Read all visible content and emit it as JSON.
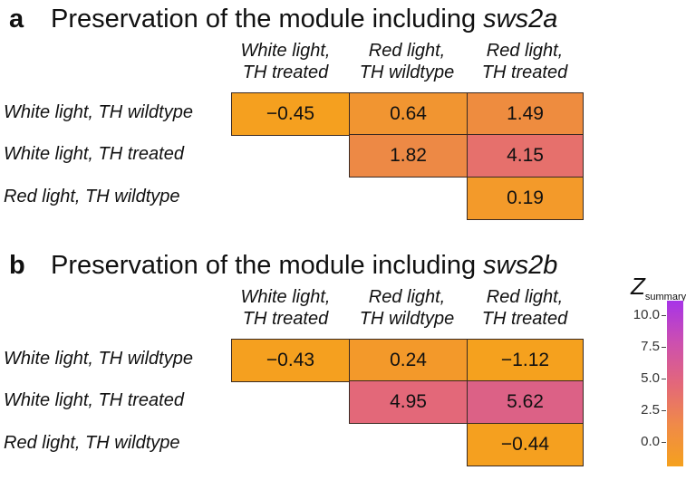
{
  "panels": [
    {
      "letter": "a",
      "title_prefix": "Preservation of the module including ",
      "title_gene": "sws2a",
      "columns": [
        [
          "White light,",
          "TH treated"
        ],
        [
          "Red light,",
          "TH wildtype"
        ],
        [
          "Red light,",
          "TH treated"
        ]
      ],
      "rows": [
        "White light, TH wildtype",
        "White light, TH treated",
        "Red light, TH wildtype"
      ]
    },
    {
      "letter": "b",
      "title_prefix": "Preservation of the module including ",
      "title_gene": "sws2b",
      "columns": [
        [
          "White light,",
          "TH treated"
        ],
        [
          "Red light,",
          "TH wildtype"
        ],
        [
          "Red light,",
          "TH treated"
        ]
      ],
      "rows": [
        "White light, TH wildtype",
        "White light, TH treated",
        "Red light, TH wildtype"
      ]
    }
  ],
  "legend": {
    "title": "Z",
    "subscript": "summary",
    "ticks": [
      "10.0",
      "7.5",
      "5.0",
      "2.5",
      "0.0"
    ],
    "colors": {
      "low": "#f5a11e",
      "mid": "#e3677a",
      "high": "#a733e8"
    }
  },
  "chart_data": [
    {
      "type": "heatmap",
      "title": "Preservation of the module including sws2a",
      "x": [
        "White light, TH treated",
        "Red light, TH wildtype",
        "Red light, TH treated"
      ],
      "y": [
        "White light, TH wildtype",
        "White light, TH treated",
        "Red light, TH wildtype"
      ],
      "values": [
        [
          -0.45,
          0.64,
          1.49
        ],
        [
          null,
          1.82,
          4.15
        ],
        [
          null,
          null,
          0.19
        ]
      ],
      "labels": [
        [
          "−0.45",
          "0.64",
          "1.49"
        ],
        [
          null,
          "1.82",
          "4.15"
        ],
        [
          null,
          null,
          "0.19"
        ]
      ],
      "zlim": [
        -0.5,
        10.5
      ]
    },
    {
      "type": "heatmap",
      "title": "Preservation of the module including sws2b",
      "x": [
        "White light, TH treated",
        "Red light, TH wildtype",
        "Red light, TH treated"
      ],
      "y": [
        "White light, TH wildtype",
        "White light, TH treated",
        "Red light, TH wildtype"
      ],
      "values": [
        [
          -0.43,
          0.24,
          -1.12
        ],
        [
          null,
          4.95,
          5.62
        ],
        [
          null,
          null,
          -0.44
        ]
      ],
      "labels": [
        [
          "−0.43",
          "0.24",
          "−1.12"
        ],
        [
          null,
          "4.95",
          "5.62"
        ],
        [
          null,
          null,
          "−0.44"
        ]
      ],
      "zlim": [
        -0.5,
        10.5
      ]
    }
  ]
}
